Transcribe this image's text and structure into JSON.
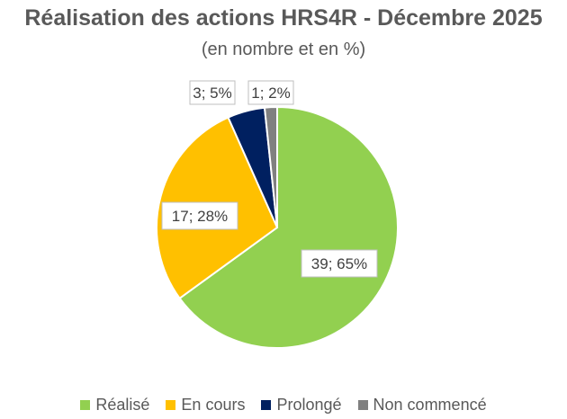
{
  "chart_data": {
    "type": "pie",
    "title": "Réalisation des actions HRS4R  - Décembre 2025",
    "subtitle": "(en nombre et en %)",
    "categories": [
      "Réalisé",
      "En cours",
      "Prolongé",
      "Non commencé"
    ],
    "values": [
      39,
      17,
      3,
      1
    ],
    "percent": [
      65,
      28,
      5,
      2
    ],
    "data_labels": [
      "39; 65%",
      "17; 28%",
      "3; 5%",
      "1; 2%"
    ],
    "colors": [
      "#92D050",
      "#FFC000",
      "#002060",
      "#808080"
    ],
    "legend": "bottom"
  }
}
